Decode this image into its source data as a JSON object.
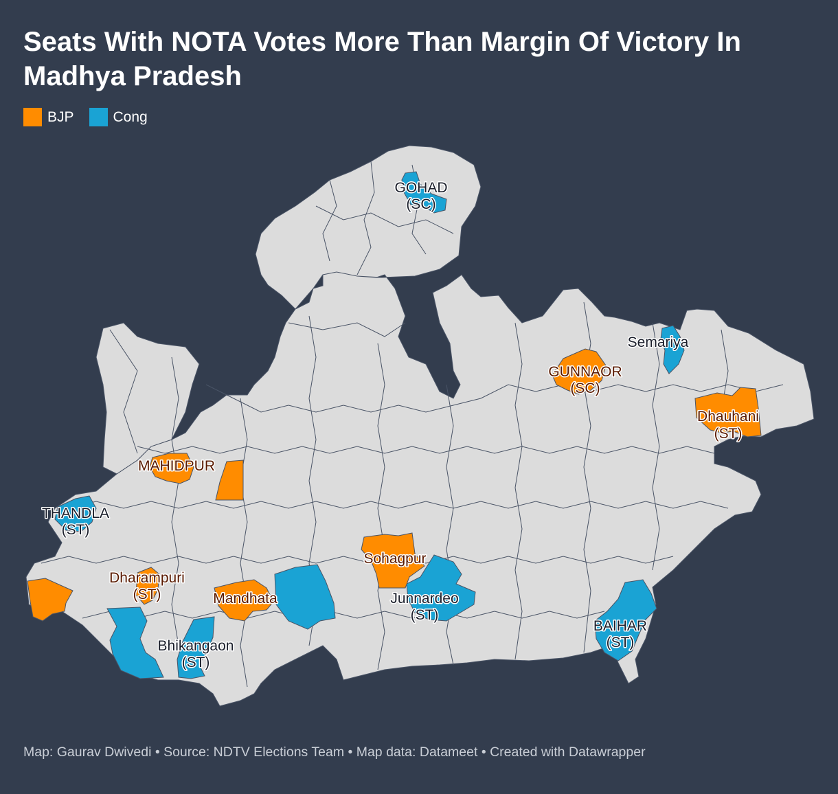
{
  "header": {
    "title": "Seats With NOTA Votes More Than Margin Of Victory In Madhya Pradesh"
  },
  "legend": {
    "items": [
      {
        "label": "BJP",
        "color": "#ff8c00"
      },
      {
        "label": "Cong",
        "color": "#1aa3d4"
      }
    ]
  },
  "map": {
    "region": "Madhya Pradesh",
    "base_color": "#dcdcdc",
    "border_color": "#333d4e",
    "labels": [
      {
        "line1": "GOHAD",
        "line2": "(SC)",
        "party": "Cong"
      },
      {
        "line1": "Semariya",
        "line2": "",
        "party": "Cong"
      },
      {
        "line1": "GUNNAOR",
        "line2": "(SC)",
        "party": "BJP"
      },
      {
        "line1": "Dhauhani",
        "line2": "(ST)",
        "party": "BJP"
      },
      {
        "line1": "MAHIDPUR",
        "line2": "",
        "party": "BJP"
      },
      {
        "line1": "THANDLA",
        "line2": "(ST)",
        "party": "Cong"
      },
      {
        "line1": "Sohagpur",
        "line2": "",
        "party": "BJP"
      },
      {
        "line1": "Dharampuri",
        "line2": "(ST)",
        "party": "BJP"
      },
      {
        "line1": "Mandhata",
        "line2": "",
        "party": "BJP"
      },
      {
        "line1": "Junnardeo",
        "line2": "(ST)",
        "party": "Cong"
      },
      {
        "line1": "BAIHAR",
        "line2": "(ST)",
        "party": "Cong"
      },
      {
        "line1": "Bhikangaon",
        "line2": "(ST)",
        "party": "Cong"
      }
    ]
  },
  "footer": {
    "credit": "Map: Gaurav Dwivedi • Source: NDTV Elections Team • Map data: Datameet • Created with Datawrapper"
  }
}
